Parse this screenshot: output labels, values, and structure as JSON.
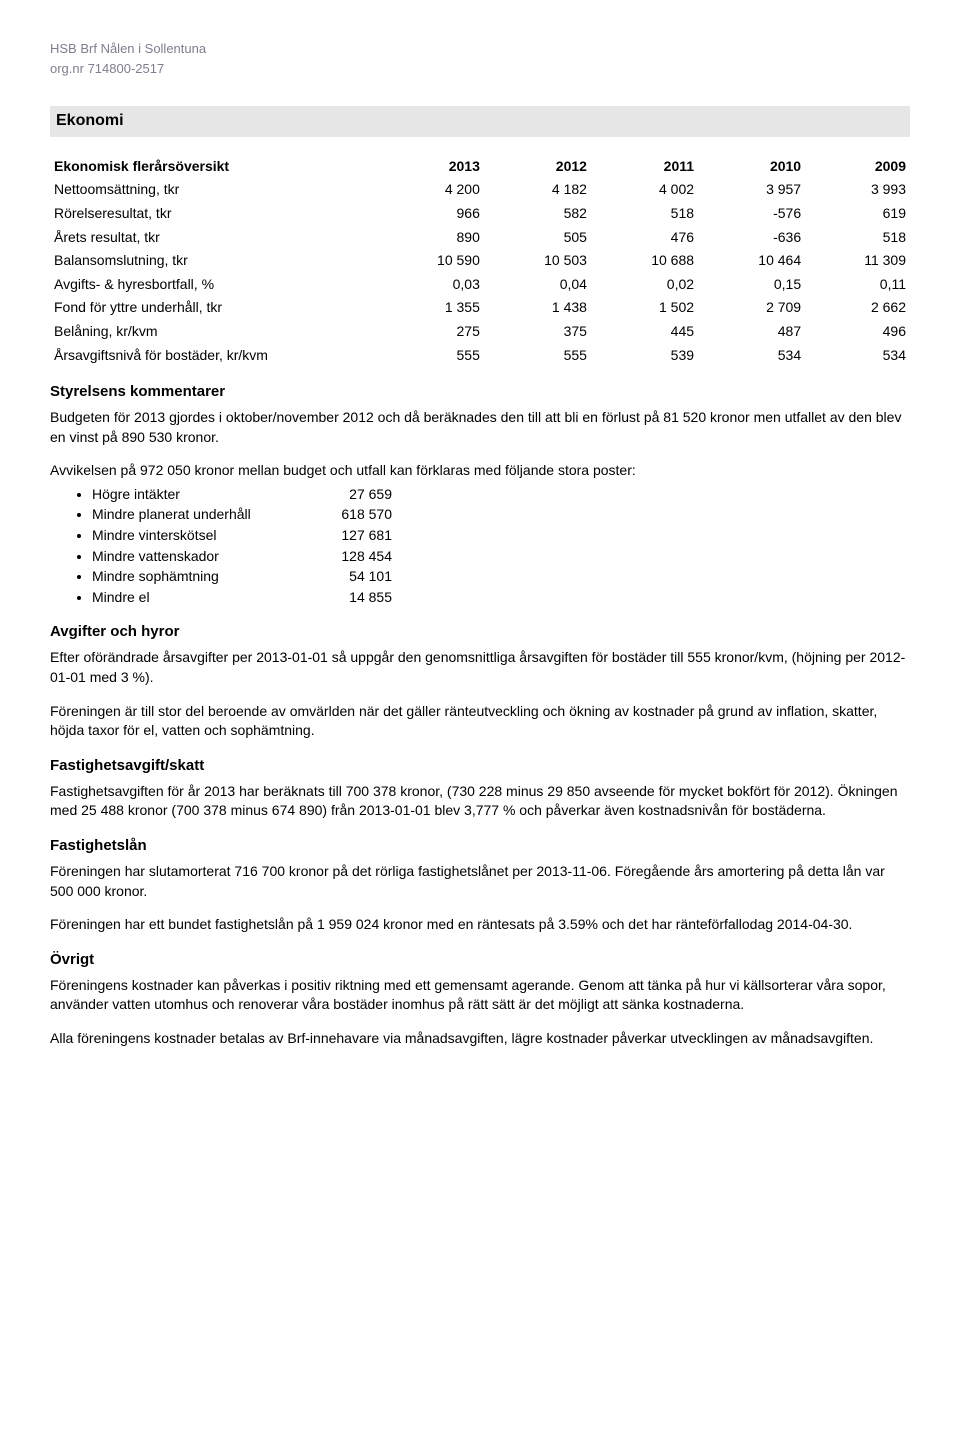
{
  "header": {
    "org_line1": "HSB Brf Nålen i Sollentuna",
    "org_line2": "org.nr 714800-2517"
  },
  "ekonomi": {
    "title": "Ekonomi",
    "table_title": "Ekonomisk flerårsöversikt",
    "years": [
      "2013",
      "2012",
      "2011",
      "2010",
      "2009"
    ],
    "rows": [
      {
        "label": "Nettoomsättning, tkr",
        "vals": [
          "4 200",
          "4 182",
          "4 002",
          "3 957",
          "3 993"
        ]
      },
      {
        "label": "Rörelseresultat, tkr",
        "vals": [
          "966",
          "582",
          "518",
          "-576",
          "619"
        ]
      },
      {
        "label": "Årets resultat, tkr",
        "vals": [
          "890",
          "505",
          "476",
          "-636",
          "518"
        ]
      },
      {
        "label": "Balansomslutning, tkr",
        "vals": [
          "10 590",
          "10 503",
          "10 688",
          "10 464",
          "11 309"
        ]
      },
      {
        "label": "Avgifts- & hyresbortfall, %",
        "vals": [
          "0,03",
          "0,04",
          "0,02",
          "0,15",
          "0,11"
        ]
      },
      {
        "label": "Fond för yttre underhåll, tkr",
        "vals": [
          "1 355",
          "1 438",
          "1 502",
          "2 709",
          "2 662"
        ]
      },
      {
        "label": "Belåning, kr/kvm",
        "vals": [
          "275",
          "375",
          "445",
          "487",
          "496"
        ]
      },
      {
        "label": "Årsavgiftsnivå för bostäder, kr/kvm",
        "vals": [
          "555",
          "555",
          "539",
          "534",
          "534"
        ]
      }
    ]
  },
  "kommentarer": {
    "heading": "Styrelsens kommentarer",
    "p1": "Budgeten för 2013 gjordes i oktober/november 2012 och då beräknades den till att bli en förlust på 81 520 kronor men utfallet av den blev en vinst på 890 530 kronor.",
    "p2": "Avvikelsen på 972 050 kronor mellan budget och utfall kan förklaras med följande stora poster:",
    "items": [
      {
        "label": "Högre intäkter",
        "val": "27 659"
      },
      {
        "label": "Mindre planerat underhåll",
        "val": "618 570"
      },
      {
        "label": "Mindre vinterskötsel",
        "val": "127 681"
      },
      {
        "label": "Mindre vattenskador",
        "val": "128 454"
      },
      {
        "label": "Mindre sophämtning",
        "val": "54 101"
      },
      {
        "label": "Mindre el",
        "val": "14 855"
      }
    ]
  },
  "avgifter": {
    "heading": "Avgifter och hyror",
    "p1": "Efter oförändrade årsavgifter per 2013-01-01 så uppgår den genomsnittliga årsavgiften för bostäder till 555 kronor/kvm, (höjning per 2012-01-01 med 3 %).",
    "p2": "Föreningen är till stor del beroende av omvärlden när det gäller ränteutveckling och ökning av kostnader på grund av inflation, skatter, höjda taxor för el, vatten och sophämtning."
  },
  "skatt": {
    "heading": "Fastighetsavgift/skatt",
    "p1": "Fastighetsavgiften för år 2013 har beräknats till 700 378 kronor, (730 228 minus 29 850 avseende för mycket bokfört för 2012). Ökningen med 25 488 kronor (700 378 minus 674 890) från 2013-01-01 blev 3,777 % och påverkar även kostnadsnivån för bostäderna."
  },
  "lan": {
    "heading": "Fastighetslån",
    "p1": "Föreningen har slutamorterat 716 700 kronor på det rörliga fastighetslånet per 2013-11-06. Föregående års amortering på detta lån var 500 000 kronor.",
    "p2": "Föreningen har ett bundet fastighetslån på 1 959 024 kronor med en räntesats på 3.59% och det har ränteförfallodag 2014-04-30."
  },
  "ovrigt": {
    "heading": "Övrigt",
    "p1": "Föreningens kostnader kan påverkas i positiv riktning med ett gemensamt agerande. Genom att tänka på hur vi källsorterar våra sopor, använder vatten utomhus och renoverar våra bostäder inomhus på rätt sätt är det möjligt att sänka kostnaderna.",
    "p2": "Alla föreningens kostnader betalas av Brf-innehavare via månadsavgiften, lägre kostnader påverkar utvecklingen av månadsavgiften."
  }
}
